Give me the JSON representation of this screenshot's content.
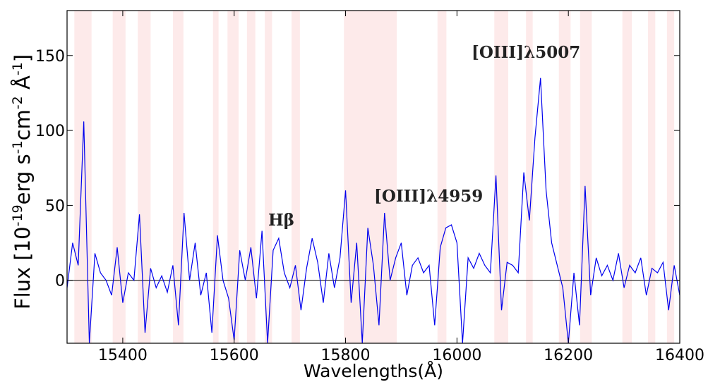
{
  "chart_data": {
    "type": "line",
    "xlabel": "Wavelengths(Å)",
    "ylabel": [
      "Flux [10",
      "-19",
      "erg s",
      "-1",
      "cm",
      "-2",
      " Å",
      "-1",
      "]"
    ],
    "annotations": [
      "[OIII]λ5007",
      "[OIII]λ4959",
      "Hβ"
    ],
    "xlim": [
      15300,
      16400
    ],
    "ylim": [
      -42,
      180
    ],
    "xticks": [
      15400,
      15600,
      15800,
      16000,
      16200,
      16400
    ],
    "yticks": [
      0,
      50,
      100,
      150
    ],
    "reference_line": 0,
    "band_color": "#fdeaea",
    "shaded_regions": [
      [
        15313,
        15344
      ],
      [
        15382,
        15405
      ],
      [
        15427,
        15450
      ],
      [
        15490,
        15509
      ],
      [
        15562,
        15572
      ],
      [
        15588,
        15608
      ],
      [
        15623,
        15638
      ],
      [
        15655,
        15668
      ],
      [
        15703,
        15718
      ],
      [
        15797,
        15892
      ],
      [
        15965,
        15981
      ],
      [
        16067,
        16092
      ],
      [
        16124,
        16136
      ],
      [
        16183,
        16204
      ],
      [
        16221,
        16242
      ],
      [
        16297,
        16314
      ],
      [
        16343,
        16356
      ],
      [
        16377,
        16390
      ]
    ],
    "series": [
      {
        "color": "#0000ee",
        "x": [
          15300,
          15310,
          15320,
          15330,
          15340,
          15350,
          15360,
          15370,
          15380,
          15390,
          15400,
          15410,
          15420,
          15430,
          15440,
          15450,
          15460,
          15470,
          15480,
          15490,
          15500,
          15510,
          15520,
          15530,
          15540,
          15550,
          15560,
          15570,
          15580,
          15590,
          15600,
          15610,
          15620,
          15630,
          15640,
          15650,
          15660,
          15670,
          15680,
          15690,
          15700,
          15710,
          15720,
          15730,
          15740,
          15750,
          15760,
          15770,
          15780,
          15790,
          15800,
          15810,
          15820,
          15830,
          15840,
          15850,
          15860,
          15870,
          15880,
          15890,
          15900,
          15910,
          15920,
          15930,
          15940,
          15950,
          15960,
          15970,
          15980,
          15990,
          16000,
          16010,
          16020,
          16030,
          16040,
          16050,
          16060,
          16070,
          16080,
          16090,
          16100,
          16110,
          16120,
          16130,
          16140,
          16150,
          16160,
          16170,
          16180,
          16190,
          16200,
          16210,
          16220,
          16230,
          16240,
          16250,
          16260,
          16270,
          16280,
          16290,
          16300,
          16310,
          16320,
          16330,
          16340,
          16350,
          16360,
          16370,
          16380,
          16390,
          16400
        ],
        "values": [
          -5,
          25,
          10,
          106,
          -42,
          18,
          5,
          0,
          -10,
          22,
          -15,
          5,
          0,
          44,
          -35,
          8,
          -5,
          3,
          -8,
          10,
          -30,
          45,
          0,
          25,
          -10,
          5,
          -35,
          30,
          0,
          -12,
          -40,
          20,
          0,
          22,
          -12,
          33,
          -42,
          20,
          28,
          5,
          -5,
          10,
          -20,
          8,
          28,
          12,
          -15,
          18,
          -5,
          15,
          60,
          -15,
          25,
          -42,
          35,
          10,
          -30,
          45,
          0,
          15,
          25,
          -10,
          10,
          15,
          5,
          10,
          -30,
          22,
          35,
          37,
          25,
          -42,
          15,
          8,
          18,
          10,
          5,
          70,
          -20,
          12,
          10,
          5,
          72,
          40,
          95,
          135,
          60,
          25,
          10,
          -5,
          -42,
          5,
          -30,
          63,
          -10,
          15,
          3,
          10,
          0,
          18,
          -5,
          10,
          5,
          15,
          -10,
          8,
          5,
          12,
          -20,
          10,
          -10
        ]
      }
    ]
  }
}
